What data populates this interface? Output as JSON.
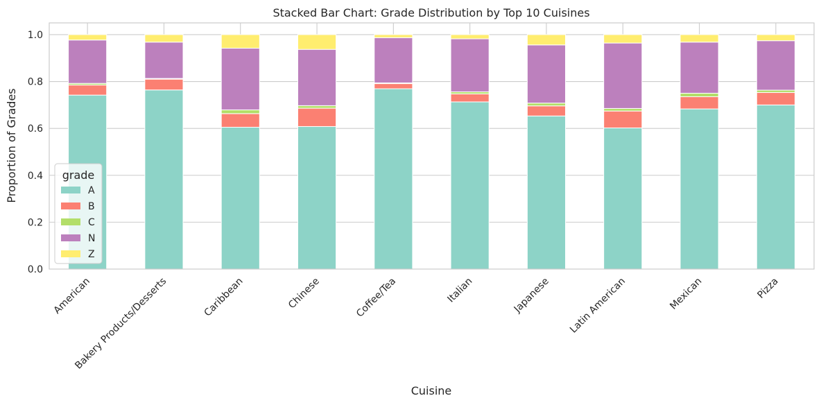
{
  "chart_data": {
    "type": "bar",
    "stacked": true,
    "title": "Stacked Bar Chart: Grade Distribution by Top 10 Cuisines",
    "xlabel": "Cuisine",
    "ylabel": "Proportion of Grades",
    "ylim": [
      0,
      1.05
    ],
    "yticks": [
      0.0,
      0.2,
      0.4,
      0.6,
      0.8,
      1.0
    ],
    "ytick_labels": [
      "0.0",
      "0.2",
      "0.4",
      "0.6",
      "0.8",
      "1.0"
    ],
    "grid": true,
    "legend": {
      "title": "grade",
      "placement": "center-left"
    },
    "categories": [
      "American",
      "Bakery Products/Desserts",
      "Caribbean",
      "Chinese",
      "Coffee/Tea",
      "Italian",
      "Japanese",
      "Latin American",
      "Mexican",
      "Pizza"
    ],
    "series": [
      {
        "name": "A",
        "color": "#8dd3c7",
        "values": [
          0.742,
          0.764,
          0.605,
          0.608,
          0.769,
          0.713,
          0.653,
          0.602,
          0.683,
          0.7
        ]
      },
      {
        "name": "B",
        "color": "#fb8072",
        "values": [
          0.043,
          0.046,
          0.058,
          0.078,
          0.022,
          0.034,
          0.043,
          0.072,
          0.052,
          0.053
        ]
      },
      {
        "name": "C",
        "color": "#b3de69",
        "values": [
          0.007,
          0.003,
          0.016,
          0.011,
          0.003,
          0.009,
          0.012,
          0.011,
          0.015,
          0.01
        ]
      },
      {
        "name": "N",
        "color": "#bc80bd",
        "values": [
          0.185,
          0.155,
          0.263,
          0.24,
          0.193,
          0.226,
          0.248,
          0.279,
          0.218,
          0.211
        ]
      },
      {
        "name": "Z",
        "color": "#ffed6f",
        "values": [
          0.023,
          0.032,
          0.058,
          0.063,
          0.013,
          0.018,
          0.044,
          0.036,
          0.032,
          0.026
        ]
      }
    ]
  }
}
